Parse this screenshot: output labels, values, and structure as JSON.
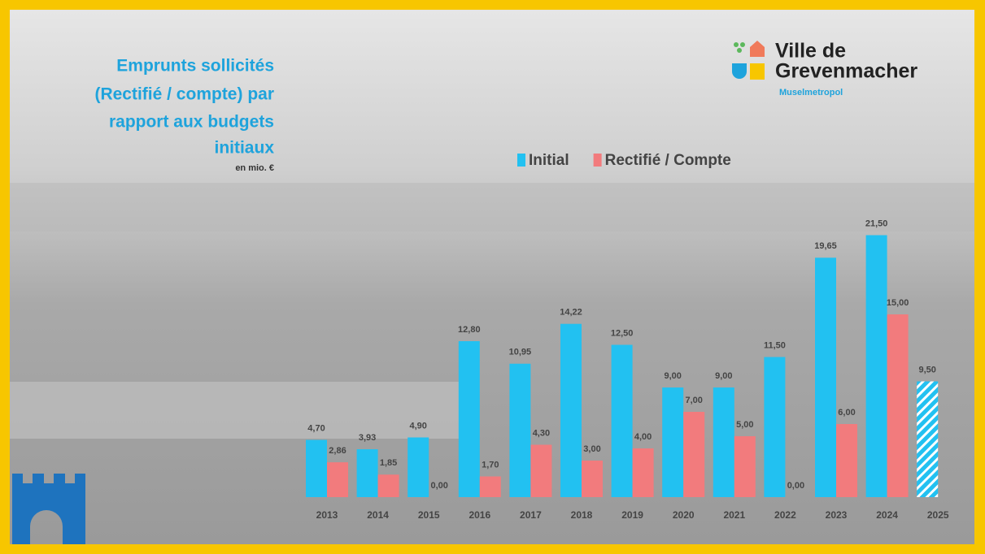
{
  "chart_data": {
    "type": "bar",
    "title": [
      "Emprunts sollicités",
      "(Rectifié / compte) par",
      "rapport aux budgets",
      "initiaux"
    ],
    "subtitle": "en mio. €",
    "brand": {
      "name_lines": [
        "Ville de",
        "Grevenmacher"
      ],
      "tagline": "Muselmetropol"
    },
    "categories": [
      "2013",
      "2014",
      "2015",
      "2016",
      "2017",
      "2018",
      "2019",
      "2020",
      "2021",
      "2022",
      "2023",
      "2024",
      "2025"
    ],
    "series": [
      {
        "name": "Initial",
        "color": "#22c1f1",
        "values": [
          4.7,
          3.93,
          4.9,
          12.8,
          10.95,
          14.22,
          12.5,
          9.0,
          9.0,
          11.5,
          19.65,
          21.5,
          9.5
        ],
        "value_labels": [
          "4,70",
          "3,93",
          "4,90",
          "12,80",
          "10,95",
          "14,22",
          "12,50",
          "9,00",
          "9,00",
          "11,50",
          "19,65",
          "21,50",
          "9,50"
        ],
        "hatched": [
          false,
          false,
          false,
          false,
          false,
          false,
          false,
          false,
          false,
          false,
          false,
          false,
          true
        ]
      },
      {
        "name": "Rectifié / Compte",
        "color": "#f27b7d",
        "values": [
          2.86,
          1.85,
          0.0,
          1.7,
          4.3,
          3.0,
          4.0,
          7.0,
          5.0,
          0.0,
          6.0,
          15.0,
          null
        ],
        "value_labels": [
          "2,86",
          "1,85",
          "0,00",
          "1,70",
          "4,30",
          "3,00",
          "4,00",
          "7,00",
          "5,00",
          "0,00",
          "6,00",
          "15,00",
          null
        ]
      }
    ],
    "ylim": [
      0,
      22
    ],
    "legend": "top"
  }
}
